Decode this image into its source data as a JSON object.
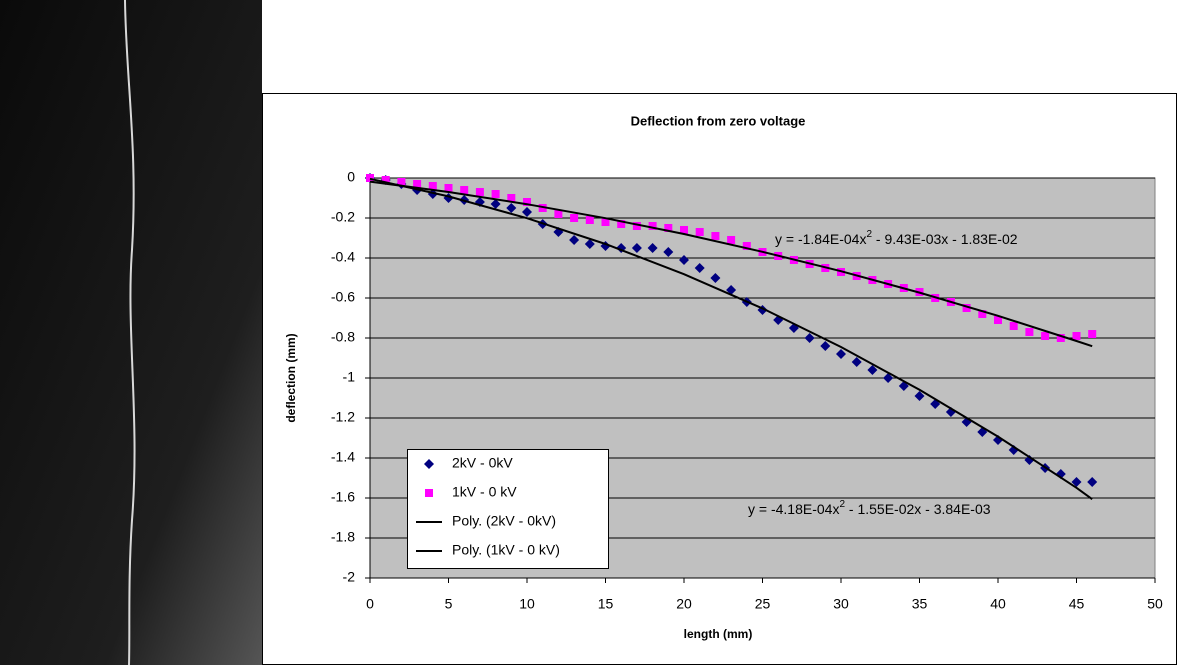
{
  "chart_data": {
    "type": "scatter",
    "title": "Deflection from zero voltage",
    "x_label": "length (mm)",
    "y_label": "deflection (mm)",
    "xlim": [
      0,
      50
    ],
    "xticks": [
      0,
      5,
      10,
      15,
      20,
      25,
      30,
      35,
      40,
      45,
      50
    ],
    "ylim": [
      -2,
      0
    ],
    "yticks": [
      0,
      -0.2,
      -0.4,
      -0.6,
      -0.8,
      -1,
      -1.2,
      -1.4,
      -1.6,
      -1.8,
      -2
    ],
    "grid": true,
    "plot_background": "#c0c0c0",
    "series": [
      {
        "name": "2kV - 0kV",
        "color": "#000080",
        "marker": "diamond",
        "x": [
          0,
          1,
          2,
          3,
          4,
          5,
          6,
          7,
          8,
          9,
          10,
          11,
          12,
          13,
          14,
          15,
          16,
          17,
          18,
          19,
          20,
          21,
          22,
          23,
          24,
          25,
          26,
          27,
          28,
          29,
          30,
          31,
          32,
          33,
          34,
          35,
          36,
          37,
          38,
          39,
          40,
          41,
          42,
          43,
          44,
          45,
          46
        ],
        "values": [
          0,
          -0.01,
          -0.03,
          -0.06,
          -0.08,
          -0.1,
          -0.11,
          -0.12,
          -0.13,
          -0.15,
          -0.17,
          -0.23,
          -0.27,
          -0.31,
          -0.33,
          -0.34,
          -0.35,
          -0.35,
          -0.35,
          -0.37,
          -0.41,
          -0.45,
          -0.5,
          -0.56,
          -0.62,
          -0.66,
          -0.71,
          -0.75,
          -0.8,
          -0.84,
          -0.88,
          -0.92,
          -0.96,
          -1.0,
          -1.04,
          -1.09,
          -1.13,
          -1.17,
          -1.22,
          -1.27,
          -1.31,
          -1.36,
          -1.41,
          -1.45,
          -1.48,
          -1.52,
          -1.52
        ]
      },
      {
        "name": "1kV - 0 kV",
        "color": "#ff00ff",
        "marker": "square",
        "x": [
          0,
          1,
          2,
          3,
          4,
          5,
          6,
          7,
          8,
          9,
          10,
          11,
          12,
          13,
          14,
          15,
          16,
          17,
          18,
          19,
          20,
          21,
          22,
          23,
          24,
          25,
          26,
          27,
          28,
          29,
          30,
          31,
          32,
          33,
          34,
          35,
          36,
          37,
          38,
          39,
          40,
          41,
          42,
          43,
          44,
          45,
          46
        ],
        "values": [
          0,
          -0.01,
          -0.02,
          -0.03,
          -0.04,
          -0.05,
          -0.06,
          -0.07,
          -0.08,
          -0.1,
          -0.12,
          -0.15,
          -0.18,
          -0.2,
          -0.21,
          -0.22,
          -0.23,
          -0.24,
          -0.24,
          -0.25,
          -0.26,
          -0.27,
          -0.29,
          -0.31,
          -0.34,
          -0.37,
          -0.39,
          -0.41,
          -0.43,
          -0.45,
          -0.47,
          -0.49,
          -0.51,
          -0.53,
          -0.55,
          -0.57,
          -0.6,
          -0.62,
          -0.65,
          -0.68,
          -0.71,
          -0.74,
          -0.77,
          -0.79,
          -0.8,
          -0.79,
          -0.78
        ]
      },
      {
        "name": "Poly. (2kV - 0kV)",
        "color": "#000000",
        "marker": "line",
        "x": [
          0,
          5,
          10,
          15,
          20,
          25,
          30,
          35,
          40,
          45,
          46
        ],
        "values": [
          -0.004,
          -0.092,
          -0.201,
          -0.33,
          -0.481,
          -0.652,
          -0.845,
          -1.059,
          -1.293,
          -1.549,
          -1.606
        ]
      },
      {
        "name": "Poly. (1kV - 0 kV)",
        "color": "#000000",
        "marker": "line",
        "x": [
          0,
          5,
          10,
          15,
          20,
          25,
          30,
          35,
          40,
          45,
          46
        ],
        "values": [
          -0.018,
          -0.07,
          -0.131,
          -0.201,
          -0.28,
          -0.369,
          -0.466,
          -0.573,
          -0.689,
          -0.815,
          -0.841
        ]
      }
    ],
    "annotations": [
      {
        "parts": [
          "y = -1.84E-04x",
          "2",
          " - 9.43E-03x - 1.83E-02"
        ]
      },
      {
        "parts": [
          "y = -4.18E-04x",
          "2",
          " - 1.55E-02x - 3.84E-03"
        ]
      }
    ]
  }
}
